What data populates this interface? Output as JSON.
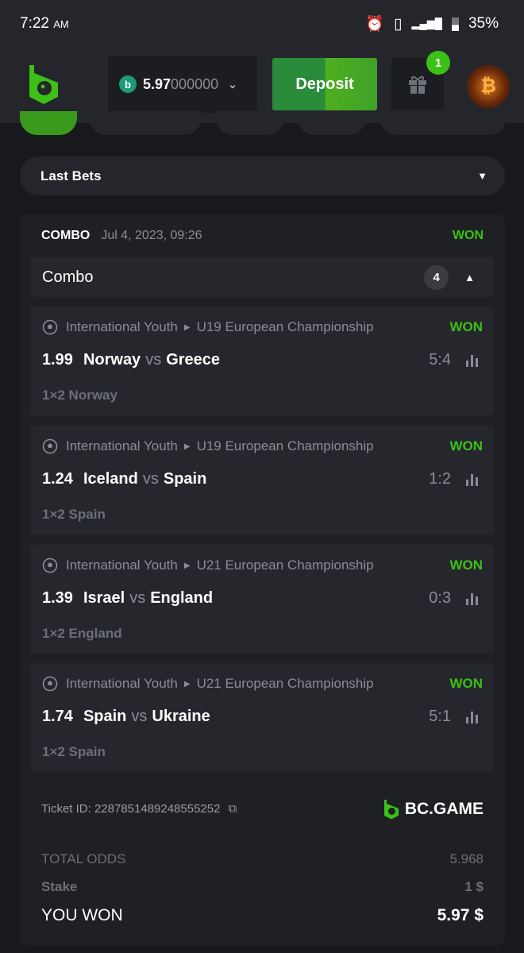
{
  "status_bar": {
    "time": "7:22",
    "ampm": "AM",
    "battery": "35%",
    "icons": [
      "alarm-icon",
      "vibrate-icon",
      "lte-signal-icon",
      "signal-icon",
      "battery-icon"
    ]
  },
  "header": {
    "balance_main": "5.97",
    "balance_rest": "000000",
    "deposit_label": "Deposit",
    "gift_badge": "1"
  },
  "colors": {
    "accent": "#3bc117",
    "background": "#18191d",
    "card": "#1f2024"
  },
  "last_bets": {
    "label": "Last Bets"
  },
  "bet": {
    "type": "COMBO",
    "date": "Jul 4, 2023, 09:26",
    "status": "WON",
    "combo_label": "Combo",
    "count": "4",
    "legs": [
      {
        "category": "International Youth",
        "tournament": "U19 European Championship",
        "status": "WON",
        "odds": "1.99",
        "home": "Norway",
        "vs": "vs",
        "away": "Greece",
        "score": "5:4",
        "market": "1×2 Norway"
      },
      {
        "category": "International Youth",
        "tournament": "U19 European Championship",
        "status": "WON",
        "odds": "1.24",
        "home": "Iceland",
        "vs": "vs",
        "away": "Spain",
        "score": "1:2",
        "market": "1×2 Spain"
      },
      {
        "category": "International Youth",
        "tournament": "U21 European Championship",
        "status": "WON",
        "odds": "1.39",
        "home": "Israel",
        "vs": "vs",
        "away": "England",
        "score": "0:3",
        "market": "1×2 England"
      },
      {
        "category": "International Youth",
        "tournament": "U21 European Championship",
        "status": "WON",
        "odds": "1.74",
        "home": "Spain",
        "vs": "vs",
        "away": "Ukraine",
        "score": "5:1",
        "market": "1×2 Spain"
      }
    ],
    "ticket_id": "Ticket ID: 2287851489248555252",
    "brand": "BC.GAME",
    "total_odds_label": "TOTAL ODDS",
    "total_odds": "5.968",
    "stake_label": "Stake",
    "stake": "1 $",
    "won_label": "YOU WON",
    "won_amount": "5.97 $"
  }
}
